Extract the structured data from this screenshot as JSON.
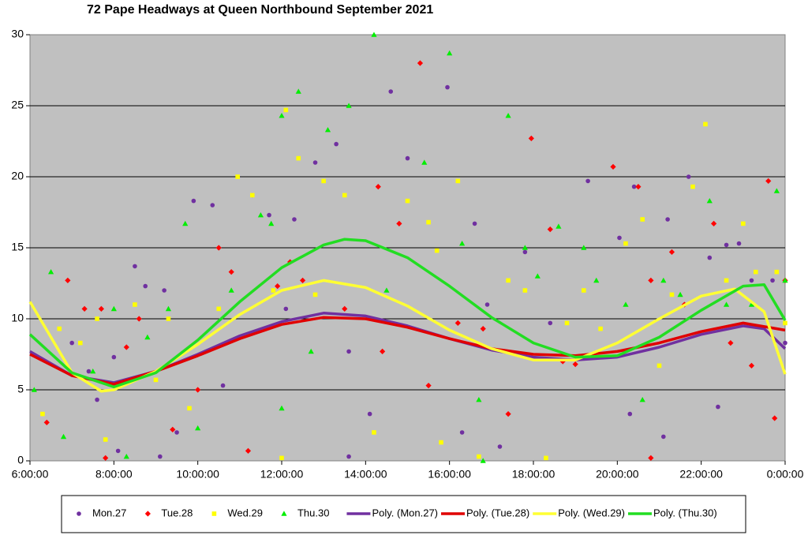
{
  "chart_data": {
    "type": "scatter",
    "title": "72 Pape Headways at Queen Northbound September 2021",
    "xlim": [
      6,
      24
    ],
    "ylim": [
      0,
      30
    ],
    "xticks": [
      {
        "value": 6,
        "label": "6:00:00"
      },
      {
        "value": 8,
        "label": "8:00:00"
      },
      {
        "value": 10,
        "label": "10:00:00"
      },
      {
        "value": 12,
        "label": "12:00:00"
      },
      {
        "value": 14,
        "label": "14:00:00"
      },
      {
        "value": 16,
        "label": "16:00:00"
      },
      {
        "value": 18,
        "label": "18:00:00"
      },
      {
        "value": 20,
        "label": "20:00:00"
      },
      {
        "value": 22,
        "label": "22:00:00"
      },
      {
        "value": 24,
        "label": "0:00:00"
      }
    ],
    "yticks": [
      0,
      5,
      10,
      15,
      20,
      25,
      30
    ],
    "grid": true,
    "legend": "bottom",
    "series": [
      {
        "name": "Mon.27",
        "type": "scatter",
        "marker": "circle",
        "color": "#7030a0",
        "x": [
          7.0,
          7.4,
          7.6,
          8.0,
          8.1,
          8.5,
          8.75,
          9.1,
          9.2,
          9.5,
          9.9,
          10.35,
          10.6,
          11.3,
          11.7,
          12.1,
          12.3,
          12.8,
          13.3,
          13.6,
          13.6,
          14.1,
          14.6,
          15.0,
          15.95,
          16.3,
          16.6,
          16.9,
          17.2,
          17.8,
          18.4,
          19.3,
          20.05,
          20.3,
          20.4,
          21.1,
          21.2,
          21.7,
          22.2,
          22.4,
          22.6,
          22.9,
          23.2,
          23.7,
          24.0
        ],
        "values": [
          8.3,
          6.3,
          4.3,
          7.3,
          0.7,
          13.7,
          12.3,
          0.3,
          12.0,
          2.0,
          18.3,
          18.0,
          5.3,
          18.7,
          17.3,
          10.7,
          17.0,
          21.0,
          22.3,
          7.7,
          0.3,
          3.3,
          26.0,
          21.3,
          26.3,
          2.0,
          16.7,
          11.0,
          1.0,
          14.7,
          9.7,
          19.7,
          15.7,
          3.3,
          19.3,
          1.7,
          17.0,
          20.0,
          14.3,
          3.8,
          15.2,
          15.3,
          12.7,
          12.7,
          8.3
        ]
      },
      {
        "name": "Tue.28",
        "type": "scatter",
        "marker": "diamond",
        "color": "#ff0000",
        "x": [
          6.4,
          6.9,
          7.3,
          7.7,
          7.8,
          8.3,
          8.6,
          9.4,
          10.0,
          10.5,
          10.8,
          11.2,
          11.9,
          12.2,
          12.5,
          13.5,
          14.3,
          14.4,
          14.8,
          15.3,
          15.5,
          16.2,
          16.8,
          17.4,
          17.95,
          18.4,
          18.7,
          19.0,
          19.9,
          20.5,
          20.8,
          20.8,
          21.3,
          21.6,
          22.3,
          22.7,
          23.2,
          23.6,
          23.75,
          24.0
        ],
        "values": [
          2.7,
          12.7,
          10.7,
          10.7,
          0.2,
          8.0,
          10.0,
          2.2,
          5.0,
          15.0,
          13.3,
          0.7,
          12.3,
          14.0,
          12.7,
          10.7,
          19.3,
          7.7,
          16.7,
          28.0,
          5.3,
          9.7,
          9.3,
          3.3,
          22.7,
          16.3,
          7.0,
          6.8,
          20.7,
          19.3,
          12.7,
          0.2,
          14.7,
          11.0,
          16.7,
          8.3,
          6.7,
          19.7,
          3.0,
          12.7
        ]
      },
      {
        "name": "Wed.29",
        "type": "scatter",
        "marker": "square",
        "color": "#ffff00",
        "x": [
          6.3,
          6.7,
          7.2,
          7.6,
          7.8,
          8.5,
          9.0,
          9.3,
          9.8,
          10.5,
          10.95,
          11.3,
          11.8,
          12.0,
          12.1,
          12.4,
          12.8,
          13.0,
          13.5,
          14.2,
          15.0,
          15.5,
          15.7,
          15.8,
          16.2,
          16.7,
          17.4,
          17.8,
          18.3,
          18.8,
          19.2,
          19.6,
          20.2,
          20.6,
          21.0,
          21.3,
          21.8,
          22.1,
          22.6,
          23.0,
          23.3,
          23.8,
          24.0
        ],
        "values": [
          3.3,
          9.3,
          8.3,
          10.0,
          1.5,
          11.0,
          5.7,
          10.0,
          3.7,
          10.7,
          20.0,
          18.7,
          12.0,
          0.2,
          24.7,
          21.3,
          11.7,
          19.7,
          18.7,
          2.0,
          18.3,
          16.8,
          14.8,
          1.3,
          19.7,
          0.3,
          12.7,
          12.0,
          0.2,
          9.7,
          12.0,
          9.3,
          15.3,
          17.0,
          6.7,
          11.7,
          19.3,
          23.7,
          12.7,
          16.7,
          13.3,
          13.3,
          9.7
        ]
      },
      {
        "name": "Thu.30",
        "type": "scatter",
        "marker": "triangle",
        "color": "#00ee00",
        "x": [
          6.1,
          6.5,
          6.8,
          7.5,
          8.0,
          8.3,
          8.8,
          9.3,
          9.7,
          10.0,
          10.8,
          11.5,
          11.75,
          12.0,
          12.0,
          12.4,
          12.7,
          13.1,
          13.6,
          14.2,
          14.5,
          15.4,
          16.0,
          16.3,
          16.7,
          16.8,
          17.4,
          17.8,
          18.1,
          18.6,
          19.2,
          19.5,
          20.2,
          20.6,
          21.1,
          21.5,
          22.2,
          22.6,
          23.2,
          23.8,
          24.0
        ],
        "values": [
          5.0,
          13.3,
          1.7,
          6.3,
          10.7,
          0.3,
          8.7,
          10.7,
          16.7,
          2.3,
          12.0,
          17.3,
          16.7,
          24.3,
          3.7,
          26.0,
          7.7,
          23.3,
          25.0,
          30.0,
          12.0,
          21.0,
          28.7,
          15.3,
          4.3,
          0.0,
          24.3,
          15.0,
          13.0,
          16.5,
          15.0,
          12.7,
          11.0,
          4.3,
          12.7,
          11.7,
          18.3,
          11.0,
          11.0,
          19.0,
          12.7
        ]
      },
      {
        "name": "Poly. (Mon.27)",
        "type": "line",
        "color": "#7030a0",
        "x": [
          6,
          7,
          8,
          9,
          10,
          11,
          12,
          13,
          14,
          15,
          16,
          17,
          18,
          19,
          20,
          21,
          22,
          23,
          23.5,
          24
        ],
        "values": [
          7.7,
          6.0,
          5.5,
          6.3,
          7.5,
          8.8,
          9.8,
          10.4,
          10.2,
          9.5,
          8.6,
          7.8,
          7.3,
          7.1,
          7.3,
          8.0,
          8.9,
          9.5,
          9.3,
          7.9
        ]
      },
      {
        "name": "Poly. (Tue.28)",
        "type": "line",
        "color": "#e00000",
        "x": [
          6,
          7,
          8,
          9,
          10,
          11,
          12,
          13,
          14,
          15,
          16,
          17,
          18,
          19,
          20,
          21,
          22,
          23,
          24
        ],
        "values": [
          7.5,
          6.0,
          5.4,
          6.3,
          7.4,
          8.6,
          9.6,
          10.1,
          10.0,
          9.4,
          8.6,
          7.9,
          7.5,
          7.4,
          7.7,
          8.3,
          9.1,
          9.7,
          9.2
        ]
      },
      {
        "name": "Poly. (Wed.29)",
        "type": "line",
        "color": "#ffff33",
        "x": [
          6,
          7,
          7.7,
          8,
          9,
          10,
          11,
          12,
          13,
          14,
          15,
          16,
          17,
          18,
          19,
          20,
          21,
          22,
          22.8,
          23.5,
          24
        ],
        "values": [
          11.2,
          6.2,
          4.9,
          5.0,
          6.3,
          8.2,
          10.3,
          12.0,
          12.7,
          12.2,
          10.9,
          9.2,
          7.9,
          7.1,
          7.1,
          8.3,
          10.0,
          11.6,
          12.1,
          10.5,
          6.1
        ]
      },
      {
        "name": "Poly. (Thu.30)",
        "type": "line",
        "color": "#22dd22",
        "x": [
          6,
          7,
          8,
          9,
          10,
          11,
          12,
          13,
          13.5,
          14,
          15,
          16,
          17,
          18,
          19,
          20,
          21,
          22,
          23,
          23.5,
          24
        ],
        "values": [
          8.9,
          6.2,
          5.2,
          6.2,
          8.5,
          11.2,
          13.6,
          15.2,
          15.6,
          15.5,
          14.3,
          12.3,
          10.1,
          8.3,
          7.3,
          7.4,
          8.7,
          10.6,
          12.3,
          12.4,
          9.9
        ]
      }
    ]
  }
}
